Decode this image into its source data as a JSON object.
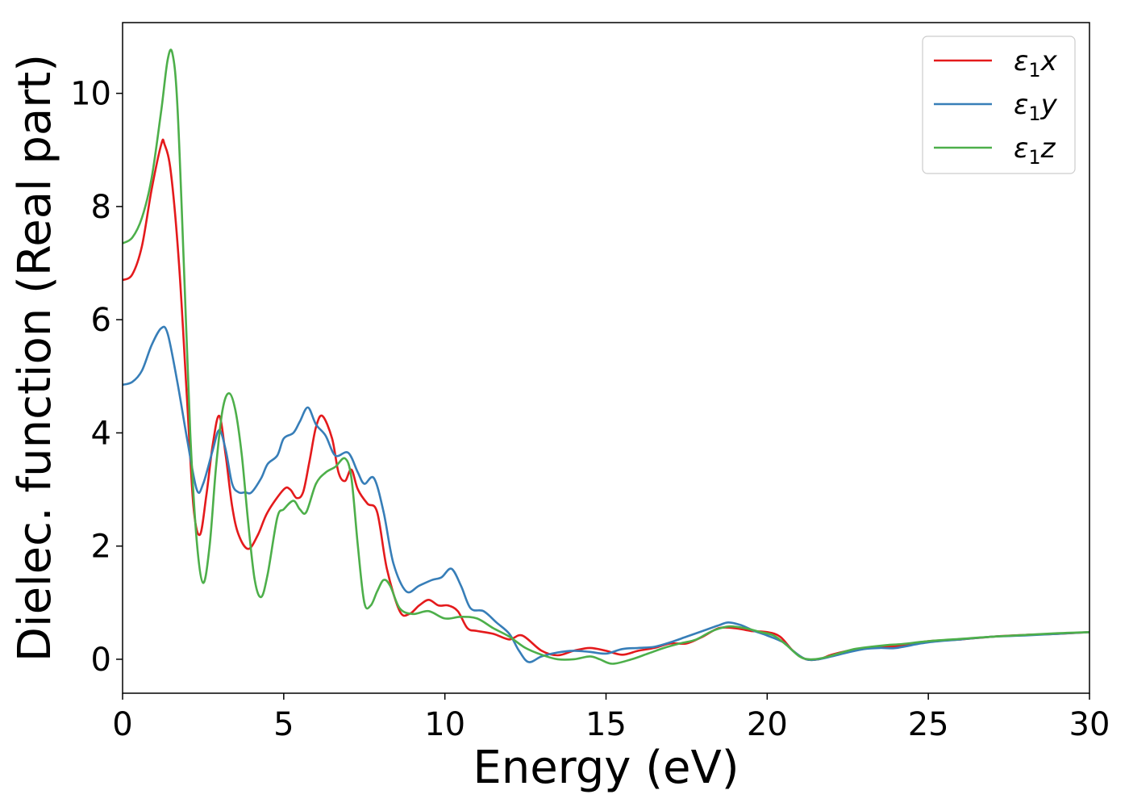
{
  "chart_data": {
    "type": "line",
    "title": "",
    "xlabel": "Energy (eV)",
    "ylabel": "Dielec. function (Real part)",
    "xlim": [
      0,
      30
    ],
    "ylim": [
      -0.6,
      11.25
    ],
    "xticks": [
      0,
      5,
      10,
      15,
      20,
      25,
      30
    ],
    "yticks": [
      0,
      2,
      4,
      6,
      8,
      10
    ],
    "grid": false,
    "legend_position": "top-right",
    "series": [
      {
        "name": "ε1x",
        "legend_base": "ε",
        "legend_sub": "1",
        "legend_suffix": "x",
        "color": "#e41a1c",
        "points": [
          [
            0,
            6.7
          ],
          [
            0.3,
            6.8
          ],
          [
            0.6,
            7.3
          ],
          [
            0.9,
            8.3
          ],
          [
            1.2,
            9.1
          ],
          [
            1.3,
            9.1
          ],
          [
            1.5,
            8.6
          ],
          [
            1.75,
            7.0
          ],
          [
            2.0,
            4.6
          ],
          [
            2.2,
            2.7
          ],
          [
            2.4,
            2.2
          ],
          [
            2.6,
            2.9
          ],
          [
            2.8,
            3.8
          ],
          [
            3.0,
            4.3
          ],
          [
            3.2,
            3.6
          ],
          [
            3.4,
            2.7
          ],
          [
            3.6,
            2.2
          ],
          [
            3.9,
            1.95
          ],
          [
            4.2,
            2.2
          ],
          [
            4.5,
            2.6
          ],
          [
            5.0,
            3.0
          ],
          [
            5.2,
            3.0
          ],
          [
            5.4,
            2.85
          ],
          [
            5.6,
            2.95
          ],
          [
            5.8,
            3.5
          ],
          [
            6.0,
            4.1
          ],
          [
            6.2,
            4.3
          ],
          [
            6.5,
            3.9
          ],
          [
            6.7,
            3.3
          ],
          [
            6.9,
            3.15
          ],
          [
            7.1,
            3.35
          ],
          [
            7.3,
            3.0
          ],
          [
            7.6,
            2.75
          ],
          [
            7.9,
            2.6
          ],
          [
            8.2,
            1.6
          ],
          [
            8.6,
            0.85
          ],
          [
            8.9,
            0.8
          ],
          [
            9.2,
            0.95
          ],
          [
            9.5,
            1.05
          ],
          [
            9.8,
            0.95
          ],
          [
            10.1,
            0.95
          ],
          [
            10.4,
            0.85
          ],
          [
            10.7,
            0.55
          ],
          [
            11.0,
            0.5
          ],
          [
            11.5,
            0.45
          ],
          [
            12.0,
            0.35
          ],
          [
            12.4,
            0.42
          ],
          [
            13.0,
            0.15
          ],
          [
            13.5,
            0.07
          ],
          [
            14.0,
            0.15
          ],
          [
            14.5,
            0.2
          ],
          [
            15.0,
            0.15
          ],
          [
            15.5,
            0.08
          ],
          [
            16.0,
            0.15
          ],
          [
            16.5,
            0.2
          ],
          [
            17.0,
            0.28
          ],
          [
            17.5,
            0.28
          ],
          [
            18.0,
            0.4
          ],
          [
            18.5,
            0.55
          ],
          [
            19.0,
            0.55
          ],
          [
            19.5,
            0.5
          ],
          [
            20.0,
            0.48
          ],
          [
            20.4,
            0.4
          ],
          [
            20.8,
            0.15
          ],
          [
            21.2,
            0.0
          ],
          [
            21.6,
            0.0
          ],
          [
            22.0,
            0.08
          ],
          [
            22.5,
            0.15
          ],
          [
            23.0,
            0.2
          ],
          [
            23.5,
            0.23
          ],
          [
            24.0,
            0.23
          ],
          [
            25.0,
            0.32
          ],
          [
            26.0,
            0.35
          ],
          [
            27.0,
            0.4
          ],
          [
            28.0,
            0.43
          ],
          [
            29.0,
            0.45
          ],
          [
            30.0,
            0.48
          ]
        ]
      },
      {
        "name": "ε1y",
        "legend_base": "ε",
        "legend_sub": "1",
        "legend_suffix": "y",
        "color": "#377eb8",
        "points": [
          [
            0,
            4.85
          ],
          [
            0.3,
            4.9
          ],
          [
            0.6,
            5.1
          ],
          [
            0.9,
            5.55
          ],
          [
            1.2,
            5.85
          ],
          [
            1.4,
            5.75
          ],
          [
            1.7,
            4.9
          ],
          [
            2.0,
            3.9
          ],
          [
            2.3,
            3.0
          ],
          [
            2.5,
            3.1
          ],
          [
            2.8,
            3.7
          ],
          [
            3.0,
            4.05
          ],
          [
            3.2,
            3.7
          ],
          [
            3.4,
            3.1
          ],
          [
            3.6,
            2.95
          ],
          [
            3.8,
            2.95
          ],
          [
            4.0,
            2.95
          ],
          [
            4.3,
            3.2
          ],
          [
            4.5,
            3.45
          ],
          [
            4.8,
            3.6
          ],
          [
            5.0,
            3.9
          ],
          [
            5.3,
            4.0
          ],
          [
            5.5,
            4.2
          ],
          [
            5.75,
            4.45
          ],
          [
            6.0,
            4.15
          ],
          [
            6.3,
            3.95
          ],
          [
            6.6,
            3.6
          ],
          [
            7.0,
            3.65
          ],
          [
            7.3,
            3.3
          ],
          [
            7.5,
            3.1
          ],
          [
            7.8,
            3.2
          ],
          [
            8.1,
            2.6
          ],
          [
            8.4,
            1.7
          ],
          [
            8.8,
            1.2
          ],
          [
            9.2,
            1.3
          ],
          [
            9.6,
            1.4
          ],
          [
            9.9,
            1.45
          ],
          [
            10.2,
            1.6
          ],
          [
            10.5,
            1.3
          ],
          [
            10.8,
            0.9
          ],
          [
            11.2,
            0.85
          ],
          [
            11.6,
            0.65
          ],
          [
            12.0,
            0.45
          ],
          [
            12.3,
            0.15
          ],
          [
            12.6,
            -0.05
          ],
          [
            13.0,
            0.05
          ],
          [
            13.5,
            0.12
          ],
          [
            14.0,
            0.15
          ],
          [
            14.5,
            0.13
          ],
          [
            15.0,
            0.1
          ],
          [
            15.5,
            0.18
          ],
          [
            16.0,
            0.2
          ],
          [
            16.5,
            0.22
          ],
          [
            17.0,
            0.3
          ],
          [
            17.5,
            0.4
          ],
          [
            18.0,
            0.5
          ],
          [
            18.5,
            0.6
          ],
          [
            18.8,
            0.65
          ],
          [
            19.2,
            0.6
          ],
          [
            19.6,
            0.5
          ],
          [
            20.0,
            0.42
          ],
          [
            20.5,
            0.3
          ],
          [
            20.8,
            0.15
          ],
          [
            21.2,
            0.0
          ],
          [
            21.6,
            0.0
          ],
          [
            22.0,
            0.05
          ],
          [
            22.5,
            0.12
          ],
          [
            23.0,
            0.18
          ],
          [
            23.5,
            0.2
          ],
          [
            24.0,
            0.2
          ],
          [
            25.0,
            0.3
          ],
          [
            26.0,
            0.35
          ],
          [
            27.0,
            0.4
          ],
          [
            28.0,
            0.42
          ],
          [
            29.0,
            0.45
          ],
          [
            30.0,
            0.48
          ]
        ]
      },
      {
        "name": "ε1z",
        "legend_base": "ε",
        "legend_sub": "1",
        "legend_suffix": "z",
        "color": "#4daf4a",
        "points": [
          [
            0,
            7.35
          ],
          [
            0.3,
            7.45
          ],
          [
            0.6,
            7.8
          ],
          [
            0.9,
            8.5
          ],
          [
            1.2,
            9.7
          ],
          [
            1.4,
            10.6
          ],
          [
            1.55,
            10.7
          ],
          [
            1.7,
            9.8
          ],
          [
            1.9,
            7.0
          ],
          [
            2.1,
            4.0
          ],
          [
            2.3,
            2.1
          ],
          [
            2.5,
            1.35
          ],
          [
            2.7,
            2.0
          ],
          [
            2.9,
            3.4
          ],
          [
            3.1,
            4.4
          ],
          [
            3.3,
            4.7
          ],
          [
            3.5,
            4.4
          ],
          [
            3.7,
            3.6
          ],
          [
            3.9,
            2.4
          ],
          [
            4.1,
            1.4
          ],
          [
            4.3,
            1.1
          ],
          [
            4.5,
            1.5
          ],
          [
            4.8,
            2.5
          ],
          [
            5.0,
            2.65
          ],
          [
            5.3,
            2.8
          ],
          [
            5.5,
            2.65
          ],
          [
            5.7,
            2.6
          ],
          [
            6.0,
            3.1
          ],
          [
            6.3,
            3.3
          ],
          [
            6.6,
            3.4
          ],
          [
            6.9,
            3.55
          ],
          [
            7.1,
            3.2
          ],
          [
            7.3,
            2.0
          ],
          [
            7.5,
            1.0
          ],
          [
            7.7,
            0.95
          ],
          [
            7.9,
            1.2
          ],
          [
            8.1,
            1.4
          ],
          [
            8.3,
            1.3
          ],
          [
            8.6,
            0.9
          ],
          [
            9.0,
            0.8
          ],
          [
            9.5,
            0.85
          ],
          [
            10.0,
            0.72
          ],
          [
            10.5,
            0.75
          ],
          [
            11.0,
            0.72
          ],
          [
            11.5,
            0.55
          ],
          [
            12.0,
            0.4
          ],
          [
            12.5,
            0.2
          ],
          [
            13.0,
            0.08
          ],
          [
            13.5,
            0.0
          ],
          [
            14.0,
            0.0
          ],
          [
            14.5,
            0.05
          ],
          [
            14.8,
            0.0
          ],
          [
            15.2,
            -0.08
          ],
          [
            15.8,
            0.0
          ],
          [
            16.3,
            0.1
          ],
          [
            16.8,
            0.2
          ],
          [
            17.3,
            0.28
          ],
          [
            17.8,
            0.35
          ],
          [
            18.3,
            0.5
          ],
          [
            18.8,
            0.58
          ],
          [
            19.3,
            0.55
          ],
          [
            19.8,
            0.48
          ],
          [
            20.2,
            0.42
          ],
          [
            20.6,
            0.25
          ],
          [
            21.0,
            0.05
          ],
          [
            21.3,
            0.0
          ],
          [
            21.7,
            0.02
          ],
          [
            22.2,
            0.1
          ],
          [
            22.7,
            0.18
          ],
          [
            23.2,
            0.22
          ],
          [
            23.7,
            0.25
          ],
          [
            24.2,
            0.27
          ],
          [
            25.0,
            0.32
          ],
          [
            26.0,
            0.36
          ],
          [
            27.0,
            0.4
          ],
          [
            28.0,
            0.43
          ],
          [
            29.0,
            0.46
          ],
          [
            30.0,
            0.48
          ]
        ]
      }
    ]
  }
}
